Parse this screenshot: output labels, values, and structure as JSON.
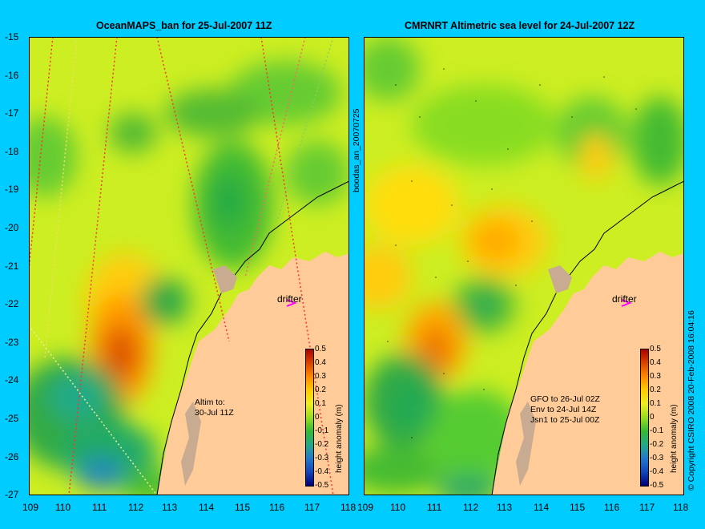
{
  "left_panel": {
    "title": "OceanMAPS_ban for 25-Jul-2007 11Z",
    "drifter_label": "drifter",
    "altim_note": "Altim to:\n30-Jul 11Z",
    "side_label": "boodas_an_20070725"
  },
  "right_panel": {
    "title": "CMRNRT Altimetric sea level  for 24-Jul-2007 12Z",
    "drifter_label": "drifter",
    "sat_note": "GFO to 26-Jul 02Z\nEnv to 24-Jul 14Z\nJsn1 to 25-Jul 00Z",
    "copyright": "© Copyright CSIRO 2008   20-Feb-2008 16:04:16"
  },
  "axes": {
    "lat_ticks": [
      "-15",
      "-16",
      "-17",
      "-18",
      "-19",
      "-20",
      "-21",
      "-22",
      "-23",
      "-24",
      "-25",
      "-26",
      "-27"
    ],
    "lon_ticks": [
      "109",
      "110",
      "111",
      "112",
      "113",
      "114",
      "115",
      "116",
      "117",
      "118"
    ]
  },
  "colorbar": {
    "label": "height anomaly (m)",
    "ticks": [
      "0.5",
      "0.4",
      "0.3",
      "0.2",
      "0.1",
      "0",
      "-0.1",
      "-0.2",
      "-0.3",
      "-0.4",
      "-0.5"
    ]
  },
  "colors": {
    "background": "#00ccff",
    "land": "#ffcc99",
    "reef": "#c8ab90",
    "drifter_marker": "#ff00ff"
  }
}
